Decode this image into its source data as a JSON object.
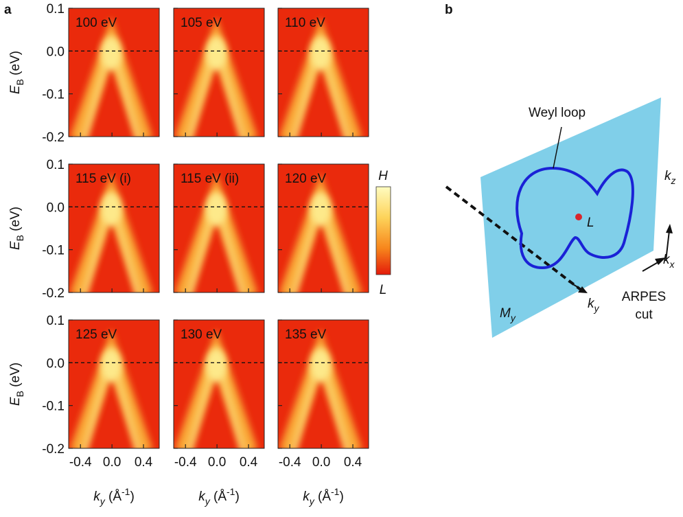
{
  "panel_a": {
    "letter": "a",
    "ylabel": {
      "main": "E",
      "sub": "B",
      "unit": " (eV)"
    },
    "xlabel": {
      "main": "k",
      "sub": "y",
      "unit": " (Å",
      "sup": "-1",
      "close": ")"
    },
    "ylim": [
      -0.2,
      0.1
    ],
    "yticks": [
      0.1,
      {
        "value": 0,
        "label": "0.0"
      },
      -0.1,
      -0.2
    ],
    "xlim": [
      -0.55,
      0.6
    ],
    "xticks": [
      -0.4,
      {
        "value": 0,
        "label": "0.0"
      },
      0.4
    ],
    "plots": [
      "100 eV",
      "105 eV",
      "110 eV",
      "115 eV (i)",
      "115 eV (ii)",
      "120 eV",
      "125 eV",
      "130 eV",
      "135 eV"
    ],
    "colorbar": {
      "high": "H",
      "low": "L"
    }
  },
  "panel_b": {
    "letter": "b",
    "weyl_loop": "Weyl loop",
    "point": "L",
    "plane": {
      "main": "M",
      "sub": "y"
    },
    "kz": {
      "main": "k",
      "sub": "z"
    },
    "kx": {
      "main": "k",
      "sub": "x"
    },
    "ky": {
      "main": "k",
      "sub": "y"
    },
    "cut_lines": [
      "ARPES",
      "cut"
    ]
  }
}
